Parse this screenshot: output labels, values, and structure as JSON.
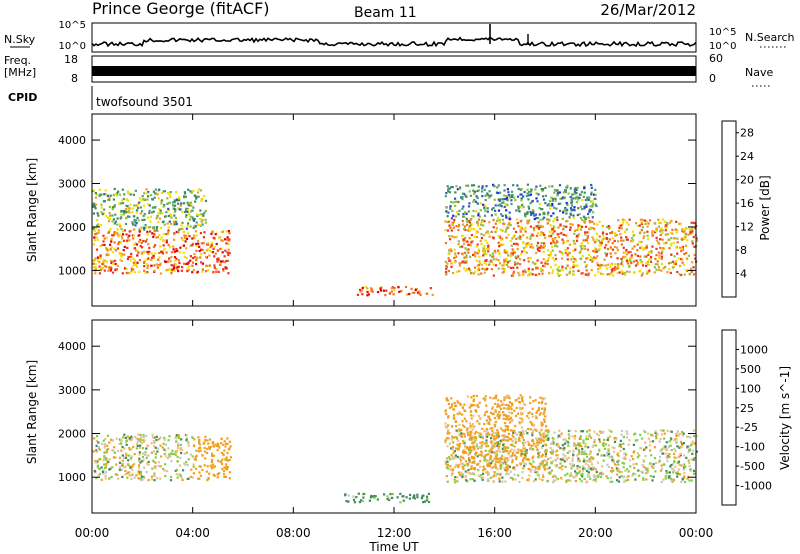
{
  "header": {
    "title": "Prince George (fitACF)",
    "beam": "Beam 11",
    "date": "26/Mar/2012"
  },
  "top_panels": {
    "noise": {
      "left_label": "N.Sky",
      "right_label": "N.Search",
      "left_ticks": [
        "10^5",
        "10^0"
      ],
      "right_ticks": [
        "10^5",
        "10^0"
      ]
    },
    "freq": {
      "left_label_line1": "Freq.",
      "left_label_line2": "[MHz]",
      "left_ticks": [
        "18",
        "8"
      ],
      "right_label": "Nave",
      "right_ticks": [
        "60",
        "0"
      ]
    },
    "cpid": {
      "label": "CPID",
      "value": "twofsound 3501"
    }
  },
  "colors": {
    "power_scale": [
      "#2020e0",
      "#2a5fb0",
      "#3f8a5a",
      "#4fa070",
      "#90c040",
      "#f0e000",
      "#f0a020",
      "#f07020",
      "#f03020",
      "#e00000"
    ],
    "velocity_scale": [
      "#e00000",
      "#f05020",
      "#f0a020",
      "#f0c080",
      "#c8c8c8",
      "#c8c8c8",
      "#80d040",
      "#3f8a5a",
      "#2a5fb0",
      "#2020e0"
    ]
  },
  "chart_data": [
    {
      "type": "heatmap",
      "panel": "power",
      "title": "",
      "xlabel": "Time UT",
      "ylabel": "Slant Range [km]",
      "xlim": [
        "00:00",
        "24:00"
      ],
      "ylim": [
        180,
        4600
      ],
      "x_ticks": [
        "00:00",
        "04:00",
        "08:00",
        "12:00",
        "16:00",
        "20:00",
        "00:00"
      ],
      "y_ticks": [
        "1000",
        "2000",
        "3000",
        "4000"
      ],
      "colorbar": {
        "label": "Power [dB]",
        "range": [
          0,
          30
        ],
        "ticks": [
          "4",
          "8",
          "12",
          "16",
          "20",
          "24",
          "28"
        ]
      },
      "regions": [
        {
          "t_start_h": 0.0,
          "t_end_h": 5.5,
          "range_km": [
            950,
            1950
          ],
          "power_db": 22
        },
        {
          "t_start_h": 0.0,
          "t_end_h": 4.5,
          "range_km": [
            1950,
            2900
          ],
          "power_db": 12
        },
        {
          "t_start_h": 14.0,
          "t_end_h": 24.0,
          "range_km": [
            900,
            2200
          ],
          "power_db": 20
        },
        {
          "t_start_h": 14.0,
          "t_end_h": 20.0,
          "range_km": [
            2200,
            3000
          ],
          "power_db": 9
        },
        {
          "t_start_h": 10.5,
          "t_end_h": 13.5,
          "range_km": [
            450,
            650
          ],
          "power_db": 24
        }
      ]
    },
    {
      "type": "heatmap",
      "panel": "velocity",
      "title": "",
      "xlabel": "Time UT",
      "ylabel": "Slant Range [km]",
      "xlim": [
        "00:00",
        "24:00"
      ],
      "ylim": [
        180,
        4600
      ],
      "x_ticks": [
        "00:00",
        "04:00",
        "08:00",
        "12:00",
        "16:00",
        "20:00",
        "00:00"
      ],
      "y_ticks": [
        "1000",
        "2000",
        "3000",
        "4000"
      ],
      "colorbar": {
        "label": "Velocity [m s^-1]",
        "ticks": [
          "1000",
          "500",
          "100",
          "25",
          "-25",
          "-100",
          "-500",
          "-1000"
        ]
      },
      "regions": [
        {
          "t_start_h": 0.0,
          "t_end_h": 4.0,
          "range_km": [
            950,
            2000
          ],
          "velocity_ms": 0
        },
        {
          "t_start_h": 4.0,
          "t_end_h": 5.5,
          "range_km": [
            950,
            1950
          ],
          "velocity_ms": -300
        },
        {
          "t_start_h": 14.0,
          "t_end_h": 24.0,
          "range_km": [
            900,
            2100
          ],
          "velocity_ms": 0
        },
        {
          "t_start_h": 14.0,
          "t_end_h": 18.0,
          "range_km": [
            1200,
            2900
          ],
          "velocity_ms": -200
        },
        {
          "t_start_h": 10.0,
          "t_end_h": 13.5,
          "range_km": [
            450,
            650
          ],
          "velocity_ms": 150
        }
      ]
    }
  ]
}
